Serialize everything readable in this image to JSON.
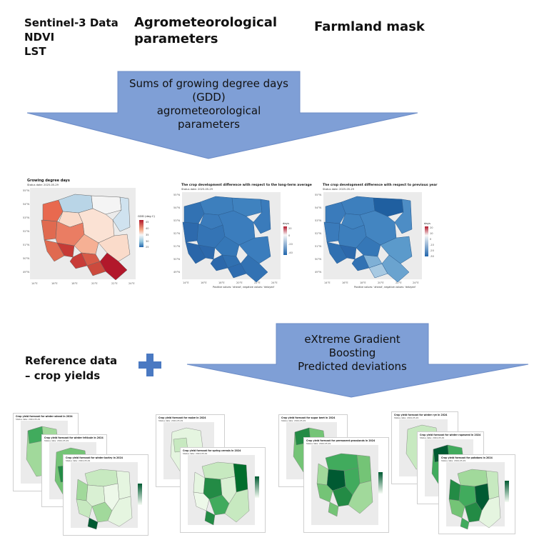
{
  "top": {
    "sentinel": [
      "Sentinel-3 Data",
      "NDVI",
      "LST"
    ],
    "agro": [
      "Agrometeorological",
      "parameters"
    ],
    "farmland": "Farmland mask"
  },
  "arrow1": {
    "lines": [
      "Sums of growing degree days",
      "(GDD)",
      "agrometeorological",
      "parameters"
    ],
    "color": "#7f9fd6"
  },
  "arrow2": {
    "lines": [
      "eXtreme Gradient",
      "Boosting",
      "Predicted deviations"
    ],
    "color": "#7f9fd6"
  },
  "reference": [
    "Reference data",
    "– crop  yields"
  ],
  "plus": {
    "color": "#4a79c2"
  },
  "map1": {
    "title": "Growing degree days",
    "subtitle": "Status date:  2025-05-29",
    "legend_title": "GDD (deg C)",
    "legend_ticks": [
      "45",
      "40",
      "35",
      "30",
      "25"
    ],
    "y_ticks": [
      "55°N",
      "54°N",
      "53°N",
      "52°N",
      "51°N",
      "50°N",
      "49°N"
    ],
    "x_ticks": [
      "14°E",
      "16°E",
      "18°E",
      "20°E",
      "22°E",
      "24°E"
    ]
  },
  "map2": {
    "title": "The crop development difference with respect to the long-term average",
    "subtitle": "Status date:  2025-05-29",
    "legend_title": "days",
    "legend_ticks": [
      "20",
      "0",
      "-20",
      "-40"
    ],
    "y_ticks": [
      "55°N",
      "54°N",
      "53°N",
      "52°N",
      "51°N",
      "50°N",
      "49°N"
    ],
    "x_ticks": [
      "14°E",
      "16°E",
      "18°E",
      "20°E",
      "22°E",
      "24°E"
    ],
    "caption": "Positive values: 'ahead', negative values: 'delayed'"
  },
  "map3": {
    "title": "The crop development difference with respect to previous year",
    "subtitle": "Status date:  2025-05-29",
    "legend_title": "days",
    "legend_ticks": [
      "20",
      "10",
      "0",
      "-10",
      "-20",
      "-30"
    ],
    "y_ticks": [
      "55°N",
      "54°N",
      "53°N",
      "52°N",
      "51°N",
      "50°N",
      "49°N"
    ],
    "x_ticks": [
      "14°E",
      "16°E",
      "18°E",
      "20°E",
      "22°E",
      "24°E"
    ],
    "caption": "Positive values: 'ahead', negative values: 'delayed'"
  },
  "forecasts": [
    {
      "titles": [
        "Crop yield forecast for winter wheat in 2024",
        "Crop yield forecast for winter triticale in 2024",
        "Crop yield forecast for winter barley in 2024"
      ],
      "status": "Status date:  2024-05-29"
    },
    {
      "titles": [
        "Crop yield forecast for maize in 2024",
        "Crop yield forecast for spring cereals in 2024"
      ],
      "status": "Status date:  2024-05-29"
    },
    {
      "titles": [
        "Crop yield forecast for sugar beet in 2024",
        "Crop yield forecast for permanent grasslands in 2024"
      ],
      "status": "Status date:  2024-05-29"
    },
    {
      "titles": [
        "Crop yield forecast for winter rye in 2024",
        "Crop yield forecast for winter rapeseed in 2024",
        "Crop yield forecast for potatoes in 2024"
      ],
      "status": "Status date:  2024-05-29"
    }
  ]
}
